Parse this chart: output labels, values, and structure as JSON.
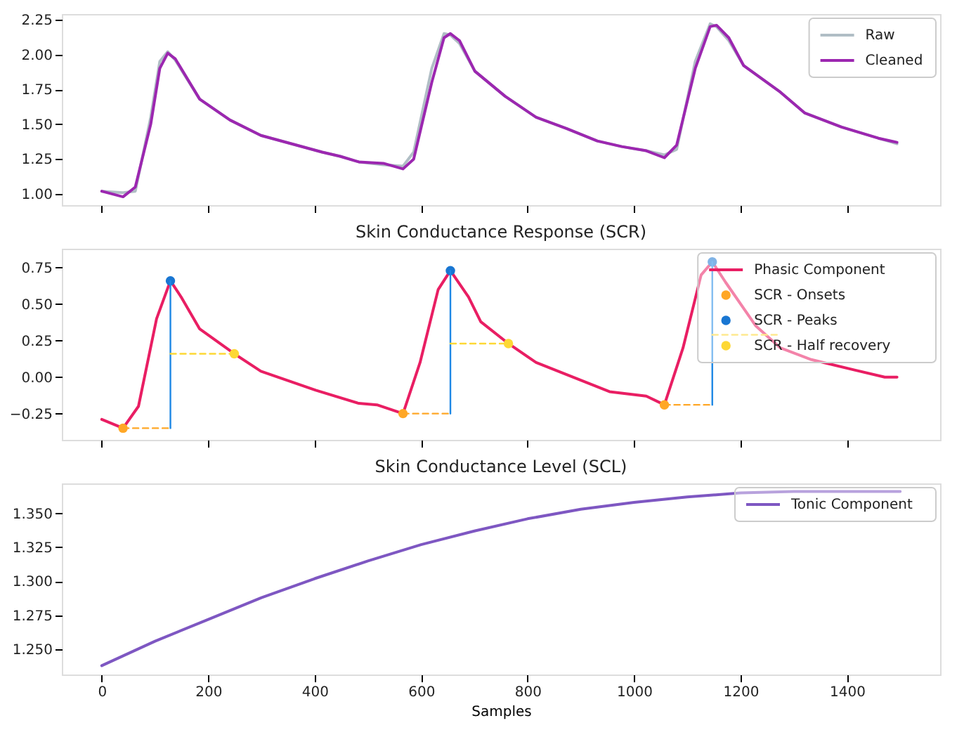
{
  "chart_data": [
    {
      "type": "line",
      "legend": "top right",
      "grid": false,
      "tick_labels": "y",
      "xlim": [
        -75,
        1575
      ],
      "ylim": [
        0.92,
        2.29
      ],
      "xticks": [
        0,
        200,
        400,
        600,
        800,
        1000,
        1200,
        1400
      ],
      "yticks": [
        {
          "value": 1.0,
          "label": "1.00"
        },
        {
          "value": 1.25,
          "label": "1.25"
        },
        {
          "value": 1.5,
          "label": "1.50"
        },
        {
          "value": 1.75,
          "label": "1.75"
        },
        {
          "value": 2.0,
          "label": "2.00"
        },
        {
          "value": 2.25,
          "label": "2.25"
        }
      ],
      "x": [
        0,
        40,
        63,
        92,
        109,
        124,
        138,
        184,
        241,
        299,
        414,
        448,
        483,
        529,
        566,
        586,
        620,
        643,
        655,
        672,
        701,
        758,
        816,
        873,
        931,
        977,
        1023,
        1057,
        1080,
        1115,
        1143,
        1155,
        1178,
        1206,
        1275,
        1321,
        1390,
        1459,
        1494
      ],
      "series": [
        {
          "name": "Raw",
          "color": "#b0bec5",
          "values": [
            1.02,
            1.01,
            1.02,
            1.55,
            1.95,
            2.02,
            1.96,
            1.68,
            1.53,
            1.42,
            1.3,
            1.27,
            1.23,
            1.21,
            1.2,
            1.3,
            1.9,
            2.15,
            2.14,
            2.08,
            1.88,
            1.7,
            1.55,
            1.47,
            1.38,
            1.34,
            1.31,
            1.28,
            1.32,
            1.95,
            2.22,
            2.2,
            2.1,
            1.92,
            1.73,
            1.58,
            1.48,
            1.4,
            1.36
          ]
        },
        {
          "name": "Cleaned",
          "color": "#9c27b0",
          "values": [
            1.02,
            0.98,
            1.05,
            1.5,
            1.9,
            2.01,
            1.97,
            1.68,
            1.53,
            1.42,
            1.3,
            1.27,
            1.23,
            1.22,
            1.18,
            1.25,
            1.8,
            2.12,
            2.15,
            2.1,
            1.88,
            1.7,
            1.55,
            1.47,
            1.38,
            1.34,
            1.31,
            1.26,
            1.35,
            1.9,
            2.2,
            2.21,
            2.12,
            1.92,
            1.73,
            1.58,
            1.48,
            1.4,
            1.37
          ]
        }
      ]
    },
    {
      "type": "line",
      "title": "Skin Conductance Response (SCR)",
      "legend": "top right",
      "grid": false,
      "tick_labels": "y",
      "xlim": [
        -75,
        1575
      ],
      "ylim": [
        -0.43,
        0.88
      ],
      "xticks": [
        0,
        200,
        400,
        600,
        800,
        1000,
        1200,
        1400
      ],
      "yticks": [
        {
          "value": -0.25,
          "label": "−0.25"
        },
        {
          "value": 0.0,
          "label": "0.00"
        },
        {
          "value": 0.25,
          "label": "0.25"
        },
        {
          "value": 0.5,
          "label": "0.50"
        },
        {
          "value": 0.75,
          "label": "0.75"
        }
      ],
      "series": [
        {
          "name": "Phasic Component",
          "color": "#e91e63",
          "x": [
            0,
            40,
            69,
            103,
            129,
            149,
            184,
            249,
            299,
            402,
            483,
            517,
            566,
            598,
            632,
            655,
            689,
            712,
            764,
            816,
            885,
            954,
            1023,
            1057,
            1092,
            1126,
            1147,
            1172,
            1229,
            1275,
            1333,
            1413,
            1471,
            1494
          ],
          "values": [
            -0.29,
            -0.35,
            -0.2,
            0.4,
            0.66,
            0.55,
            0.33,
            0.16,
            0.04,
            -0.09,
            -0.18,
            -0.19,
            -0.25,
            0.1,
            0.6,
            0.73,
            0.55,
            0.38,
            0.23,
            0.1,
            0.0,
            -0.1,
            -0.13,
            -0.19,
            0.2,
            0.7,
            0.79,
            0.65,
            0.35,
            0.2,
            0.12,
            0.05,
            0.0,
            0.0
          ]
        },
        {
          "name": "SCR - Onsets",
          "type": "scatter",
          "marker": "circle",
          "color": "#ffa726",
          "x": [
            40,
            566,
            1057
          ],
          "values": [
            -0.35,
            -0.25,
            -0.19
          ]
        },
        {
          "name": "SCR - Peaks",
          "type": "scatter",
          "marker": "circle",
          "color": "#1976d2",
          "x": [
            129,
            655,
            1147
          ],
          "values": [
            0.66,
            0.73,
            0.79
          ]
        },
        {
          "name": "SCR - Half recovery",
          "type": "scatter",
          "marker": "circle",
          "color": "#fdd835",
          "x": [
            249,
            764
          ],
          "values": [
            0.16,
            0.23
          ]
        },
        {
          "type": "line",
          "color": "#1e88e5",
          "x": [
            129,
            129
          ],
          "values": [
            -0.35,
            0.66
          ]
        },
        {
          "type": "line",
          "color": "#1e88e5",
          "x": [
            655,
            655
          ],
          "values": [
            -0.25,
            0.73
          ]
        },
        {
          "type": "line",
          "color": "#1e88e5",
          "x": [
            1147,
            1147
          ],
          "values": [
            -0.19,
            0.79
          ]
        },
        {
          "type": "line",
          "line_style": "dashed",
          "color": "#ffa726",
          "x": [
            40,
            129
          ],
          "values": [
            -0.35,
            -0.35
          ]
        },
        {
          "type": "line",
          "line_style": "dashed",
          "color": "#ffa726",
          "x": [
            566,
            655
          ],
          "values": [
            -0.25,
            -0.25
          ]
        },
        {
          "type": "line",
          "line_style": "dashed",
          "color": "#ffa726",
          "x": [
            1057,
            1147
          ],
          "values": [
            -0.19,
            -0.19
          ]
        },
        {
          "type": "line",
          "line_style": "dashed",
          "color": "#fdd835",
          "x": [
            129,
            249
          ],
          "values": [
            0.16,
            0.16
          ]
        },
        {
          "type": "line",
          "line_style": "dashed",
          "color": "#fdd835",
          "x": [
            655,
            764
          ],
          "values": [
            0.23,
            0.23
          ]
        },
        {
          "type": "line",
          "line_style": "dashed",
          "color": "#fdd835",
          "x": [
            1147,
            1275
          ],
          "values": [
            0.29,
            0.29
          ]
        }
      ]
    },
    {
      "type": "line",
      "title": "Skin Conductance Level (SCL)",
      "xlabel": "Samples",
      "legend": "top right",
      "grid": false,
      "xlim": [
        -75,
        1575
      ],
      "ylim": [
        1.2315,
        1.372
      ],
      "xticks": [
        0,
        200,
        400,
        600,
        800,
        1000,
        1200,
        1400
      ],
      "yticks": [
        {
          "value": 1.25,
          "label": "1.250"
        },
        {
          "value": 1.275,
          "label": "1.275"
        },
        {
          "value": 1.3,
          "label": "1.300"
        },
        {
          "value": 1.325,
          "label": "1.325"
        },
        {
          "value": 1.35,
          "label": "1.350"
        }
      ],
      "series": [
        {
          "name": "Tonic Component",
          "color": "#7e57c2",
          "x": [
            0,
            100,
            200,
            300,
            400,
            500,
            600,
            700,
            800,
            900,
            1000,
            1100,
            1200,
            1300,
            1400,
            1500
          ],
          "values": [
            1.238,
            1.256,
            1.272,
            1.288,
            1.302,
            1.315,
            1.327,
            1.337,
            1.346,
            1.353,
            1.358,
            1.362,
            1.365,
            1.366,
            1.366,
            1.366
          ]
        }
      ]
    }
  ]
}
